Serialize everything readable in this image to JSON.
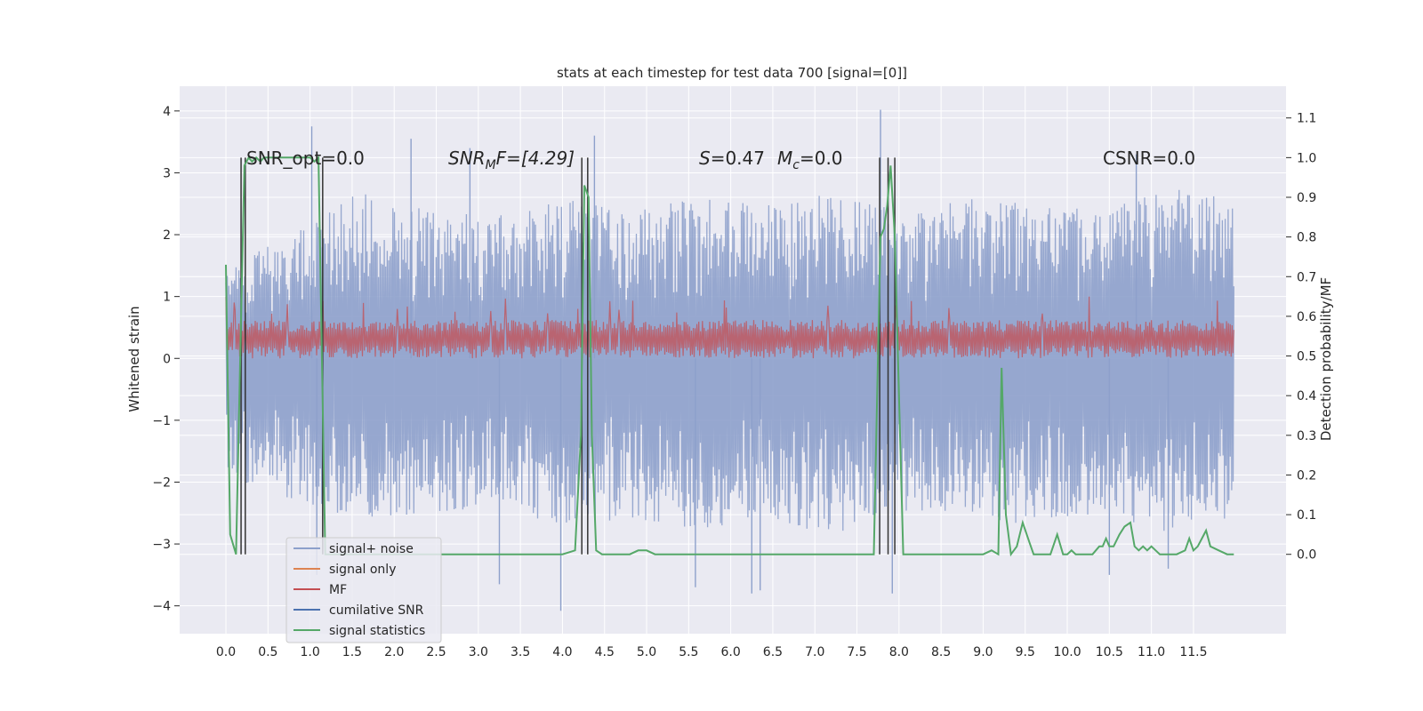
{
  "chart_data": {
    "type": "line",
    "title": "stats at each timestep for test data 700 [signal=[0]]",
    "xlabel": "",
    "ylabel": "Whitened strain",
    "y2label": "Detection probability/MF",
    "xlim": [
      -0.55,
      12.6
    ],
    "ylim": [
      -4.45,
      4.4
    ],
    "y2lim": [
      -0.2,
      1.18
    ],
    "grid": true,
    "x_ticks": [
      "0.0",
      "0.5",
      "1.0",
      "1.5",
      "2.0",
      "2.5",
      "3.0",
      "3.5",
      "4.0",
      "4.5",
      "5.0",
      "5.5",
      "6.0",
      "6.5",
      "7.0",
      "7.5",
      "8.0",
      "8.5",
      "9.0",
      "9.5",
      "10.0",
      "10.5",
      "11.0",
      "11.5"
    ],
    "y_ticks": [
      "−4",
      "−3",
      "−2",
      "−1",
      "0",
      "1",
      "2",
      "3",
      "4"
    ],
    "y2_ticks": [
      "0.0",
      "0.1",
      "0.2",
      "0.3",
      "0.4",
      "0.5",
      "0.6",
      "0.7",
      "0.8",
      "0.9",
      "1.0",
      "1.1"
    ],
    "annotations": [
      {
        "id": "snr-opt",
        "text": "SNR_opt=0.0"
      },
      {
        "id": "snr-mf",
        "text_main": "SNR",
        "text_sub": "M",
        "text_rest": "F=[4.29]"
      },
      {
        "id": "stat",
        "text_s": "S",
        "text_s_rest": "=0.47",
        "text_m": "M",
        "text_m_sub": "c",
        "text_m_rest": "=0.0"
      },
      {
        "id": "csnr",
        "text": "CSNR=0.0"
      }
    ],
    "legend": {
      "placement": "lower-left",
      "entries": [
        {
          "label": "signal+ noise",
          "color": "#8da0cb"
        },
        {
          "label": "signal only",
          "color": "#dd8452"
        },
        {
          "label": "MF",
          "color": "#c44e52"
        },
        {
          "label": "cumilative SNR",
          "color": "#4c72b0"
        },
        {
          "label": "signal statistics",
          "color": "#55a868"
        }
      ]
    },
    "colors": {
      "axes_bg": "#eaeaf2",
      "grid": "#ffffff",
      "noise": "#8da0cb",
      "mf": "#c44e52",
      "stats": "#55a868",
      "vlines": "#333333"
    },
    "series": [
      {
        "name": "signal+ noise",
        "axis": "left",
        "x_range": [
          0.0,
          11.98
        ],
        "envelope_upper": [
          1.4,
          2.1,
          2.7,
          2.4,
          2.3,
          2.6,
          2.4,
          2.6,
          2.5,
          2.7,
          2.4,
          2.6,
          2.5,
          2.4,
          2.8,
          2.6
        ],
        "envelope_lower": [
          -1.9,
          -2.3,
          -2.6,
          -2.5,
          -2.4,
          -2.7,
          -2.6,
          -2.8,
          -2.6,
          -2.9,
          -2.5,
          -2.6,
          -2.7,
          -2.5,
          -2.8,
          -2.7
        ],
        "peaks": [
          {
            "x": 1.02,
            "y": 3.75
          },
          {
            "x": 2.2,
            "y": 3.55
          },
          {
            "x": 2.9,
            "y": 3.4
          },
          {
            "x": 4.38,
            "y": 3.6
          },
          {
            "x": 7.78,
            "y": 4.02
          },
          {
            "x": 10.82,
            "y": 3.3
          },
          {
            "x": 3.98,
            "y": -4.08
          },
          {
            "x": 3.25,
            "y": -3.65
          },
          {
            "x": 6.25,
            "y": -3.8
          },
          {
            "x": 6.35,
            "y": -3.75
          },
          {
            "x": 7.92,
            "y": -3.8
          },
          {
            "x": 5.58,
            "y": -3.7
          },
          {
            "x": 1.08,
            "y": -3.5
          },
          {
            "x": 10.5,
            "y": -3.5
          },
          {
            "x": 11.2,
            "y": -3.4
          }
        ]
      },
      {
        "name": "MF",
        "axis": "left",
        "x_range": [
          0.0,
          11.98
        ],
        "center": 0.3,
        "upper": 0.62,
        "lower": 0.0,
        "max_peak": 1.0
      },
      {
        "name": "signal statistics",
        "axis": "right",
        "x": [
          0.0,
          0.05,
          0.12,
          0.18,
          0.22,
          0.27,
          0.31,
          0.36,
          0.41,
          0.45,
          0.5,
          0.55,
          0.6,
          0.7,
          0.8,
          0.9,
          1.0,
          1.05,
          1.1,
          1.14,
          1.18,
          1.25,
          1.35,
          1.5,
          1.8,
          2.2,
          2.6,
          3.0,
          3.3,
          3.6,
          4.0,
          4.15,
          4.22,
          4.26,
          4.31,
          4.35,
          4.4,
          4.47,
          4.6,
          4.8,
          4.9,
          5.0,
          5.1,
          5.5,
          6.0,
          6.5,
          7.0,
          7.5,
          7.7,
          7.78,
          7.82,
          7.86,
          7.9,
          7.95,
          8.0,
          8.05,
          8.1,
          8.5,
          8.8,
          9.0,
          9.1,
          9.18,
          9.22,
          9.27,
          9.33,
          9.4,
          9.47,
          9.55,
          9.6,
          9.7,
          9.8,
          9.88,
          9.95,
          10.0,
          10.05,
          10.1,
          10.2,
          10.3,
          10.38,
          10.42,
          10.46,
          10.5,
          10.55,
          10.62,
          10.68,
          10.75,
          10.8,
          10.85,
          10.9,
          10.95,
          11.0,
          11.05,
          11.1,
          11.2,
          11.3,
          11.4,
          11.45,
          11.5,
          11.55,
          11.6,
          11.65,
          11.7,
          11.8,
          11.9,
          11.98
        ],
        "values": [
          0.73,
          0.05,
          0.0,
          0.6,
          0.98,
          1.0,
          0.99,
          1.0,
          0.99,
          1.0,
          1.0,
          1.0,
          1.0,
          1.0,
          1.0,
          1.0,
          1.0,
          0.99,
          1.0,
          0.5,
          0.0,
          0.0,
          0.0,
          0.0,
          0.0,
          0.0,
          0.0,
          0.0,
          0.0,
          0.0,
          0.0,
          0.01,
          0.3,
          0.93,
          0.9,
          0.3,
          0.01,
          0.0,
          0.0,
          0.0,
          0.01,
          0.01,
          0.0,
          0.0,
          0.0,
          0.0,
          0.0,
          0.0,
          0.0,
          0.8,
          0.82,
          0.88,
          0.98,
          0.8,
          0.4,
          0.0,
          0.0,
          0.0,
          0.0,
          0.0,
          0.01,
          0.0,
          0.47,
          0.1,
          0.0,
          0.02,
          0.08,
          0.03,
          0.0,
          0.0,
          0.0,
          0.05,
          0.0,
          0.0,
          0.01,
          0.0,
          0.0,
          0.0,
          0.02,
          0.02,
          0.04,
          0.02,
          0.02,
          0.05,
          0.07,
          0.08,
          0.02,
          0.01,
          0.02,
          0.01,
          0.02,
          0.01,
          0.0,
          0.0,
          0.0,
          0.01,
          0.04,
          0.01,
          0.02,
          0.04,
          0.06,
          0.02,
          0.01,
          0.0,
          0.0
        ]
      }
    ],
    "vertical_lines": [
      {
        "x": 0.18,
        "bottom": 0.0,
        "top": 1.0
      },
      {
        "x": 0.23,
        "bottom": 0.0,
        "top": 1.0
      },
      {
        "x": 1.15,
        "bottom": 0.0,
        "top": 1.0
      },
      {
        "x": 4.23,
        "bottom": 0.0,
        "top": 1.0
      },
      {
        "x": 4.3,
        "bottom": 0.0,
        "top": 1.0
      },
      {
        "x": 7.77,
        "bottom": 0.0,
        "top": 1.0
      },
      {
        "x": 7.87,
        "bottom": 0.0,
        "top": 1.0
      },
      {
        "x": 7.95,
        "bottom": 0.0,
        "top": 1.0
      }
    ]
  }
}
